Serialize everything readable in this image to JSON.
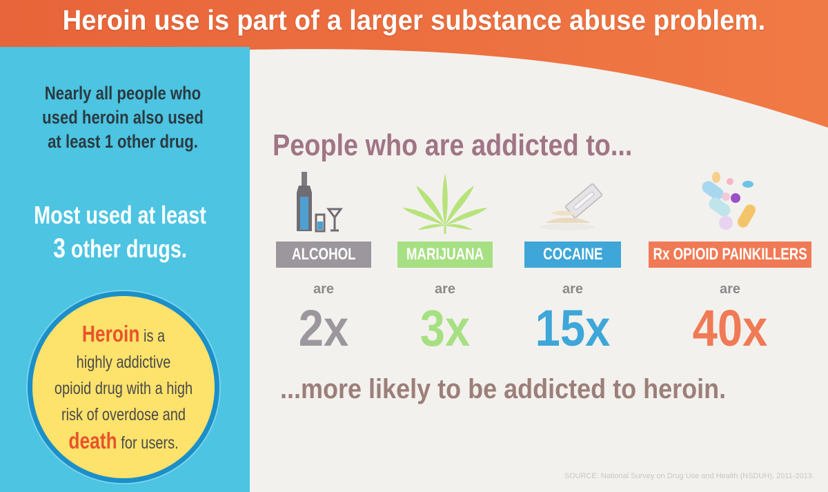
{
  "header": {
    "title": "Heroin use is part of a larger substance abuse problem.",
    "band_color": "#ee6a38"
  },
  "sidebar": {
    "color": "#4cc4e2",
    "statement_1": [
      "Nearly all people who",
      "used heroin also used",
      "at least 1 other drug."
    ],
    "statement_2": {
      "line_1": "Most used at least",
      "number": "3",
      "line_2_rest": " other drugs."
    },
    "callout": {
      "keyword_1": "Heroin",
      "after_keyword_1": " is a",
      "lines": [
        "highly addictive",
        "opioid drug with a high",
        "risk of overdose and"
      ],
      "keyword_2": "death",
      "after_keyword_2": " for users."
    }
  },
  "main": {
    "title": "People who are addicted to...",
    "are_word": "are",
    "drugs": [
      {
        "label": "ALCOHOL",
        "multiplier": "2x",
        "color": "#9c979c",
        "icon": "bottle-and-glasses-icon"
      },
      {
        "label": "MARIJUANA",
        "multiplier": "3x",
        "color": "#a6e082",
        "icon": "cannabis-leaf-icon"
      },
      {
        "label": "COCAINE",
        "multiplier": "15x",
        "color": "#3ea6d8",
        "icon": "razor-blade-powder-icon"
      },
      {
        "label": "Rx OPIOID PAINKILLERS",
        "multiplier": "40x",
        "color": "#f07a55",
        "icon": "pills-icon"
      }
    ],
    "conclusion": "...more likely to be addicted to heroin."
  },
  "source": "SOURCE: National Survey on Drug Use and Health (NSDUH), 2011-2013."
}
